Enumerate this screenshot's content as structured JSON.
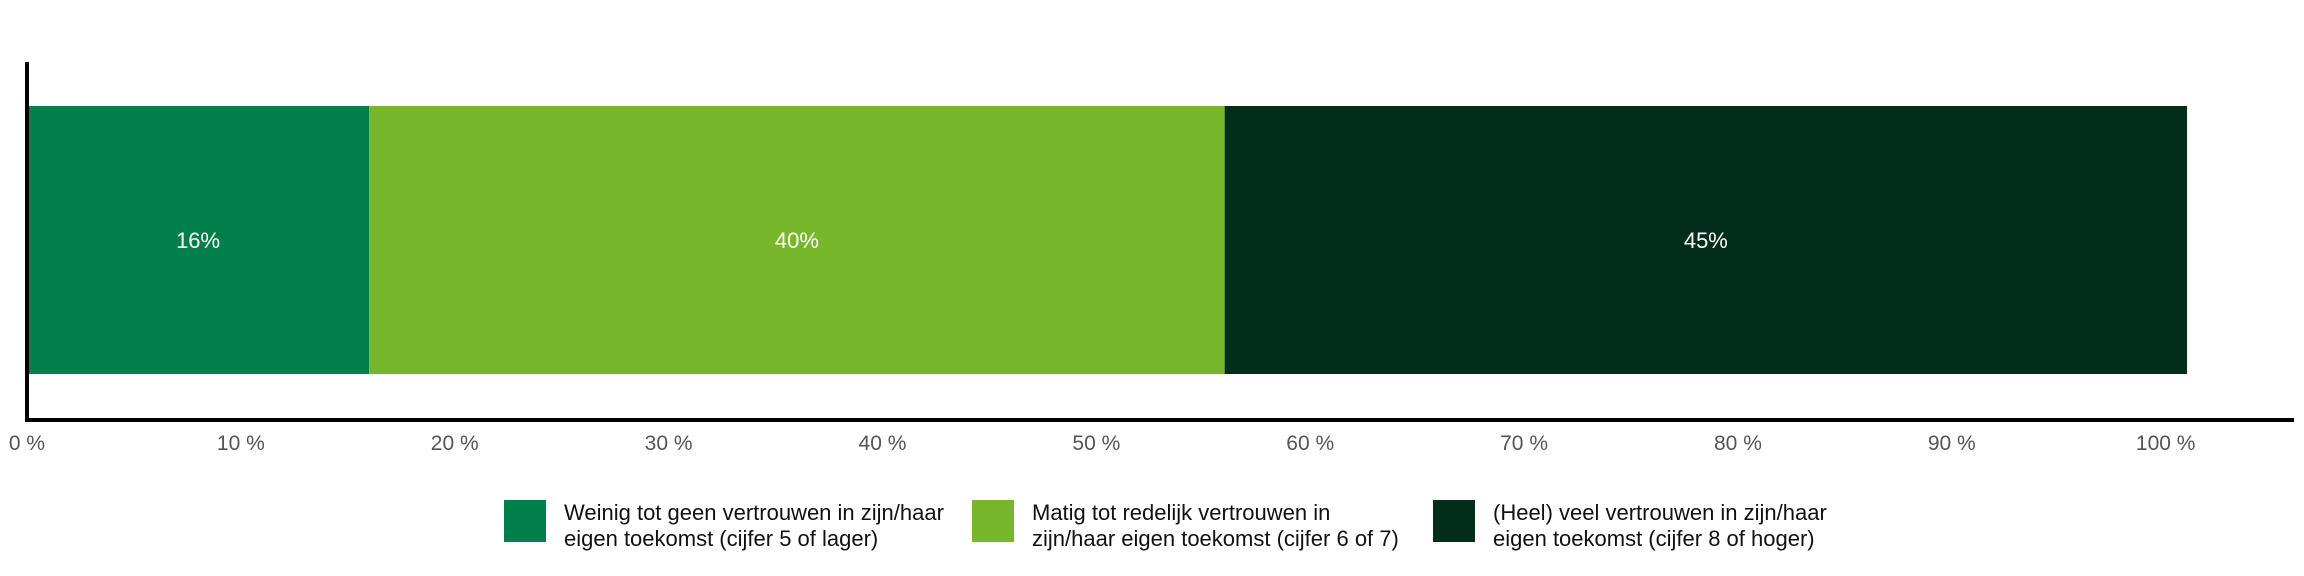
{
  "chart_data": {
    "type": "bar",
    "orientation": "horizontal",
    "stacked": true,
    "categories": [
      ""
    ],
    "series": [
      {
        "name": "Weinig tot geen vertrouwen in zijn/haar eigen toekomst (cijfer 5 of lager)",
        "values": [
          16
        ],
        "label": "16%",
        "color": "#007F4A"
      },
      {
        "name": "Matig tot redelijk vertrouwen in zijn/haar eigen toekomst (cijfer 6 of 7)",
        "values": [
          40
        ],
        "label": "40%",
        "color": "#78B72C"
      },
      {
        "name": "(Heel) veel vertrouwen in zijn/haar eigen toekomst (cijfer 8 of hoger)",
        "values": [
          45
        ],
        "label": "45%",
        "color": "#022D1A"
      }
    ],
    "xlim": [
      0,
      106
    ],
    "xticks": [
      0,
      10,
      20,
      30,
      40,
      50,
      60,
      70,
      80,
      90,
      100
    ],
    "xtick_labels": [
      "0 %",
      "10 %",
      "20 %",
      "30 %",
      "40 %",
      "50 %",
      "60 %",
      "70 %",
      "80 %",
      "90 %",
      "100 %"
    ],
    "title": "",
    "xlabel": "",
    "ylabel": "",
    "grid": false,
    "legend_position": "bottom"
  },
  "legend": {
    "items": [
      {
        "label": "Weinig tot geen vertrouwen in zijn/haar eigen toekomst (cijfer 5 of lager)",
        "color": "#007F4A"
      },
      {
        "label": "Matig tot redelijk vertrouwen in zijn/haar eigen toekomst (cijfer 6 of 7)",
        "color": "#78B72C"
      },
      {
        "label": "(Heel) veel vertrouwen in zijn/haar eigen toekomst (cijfer 8 of hoger)",
        "color": "#022D1A"
      }
    ]
  }
}
